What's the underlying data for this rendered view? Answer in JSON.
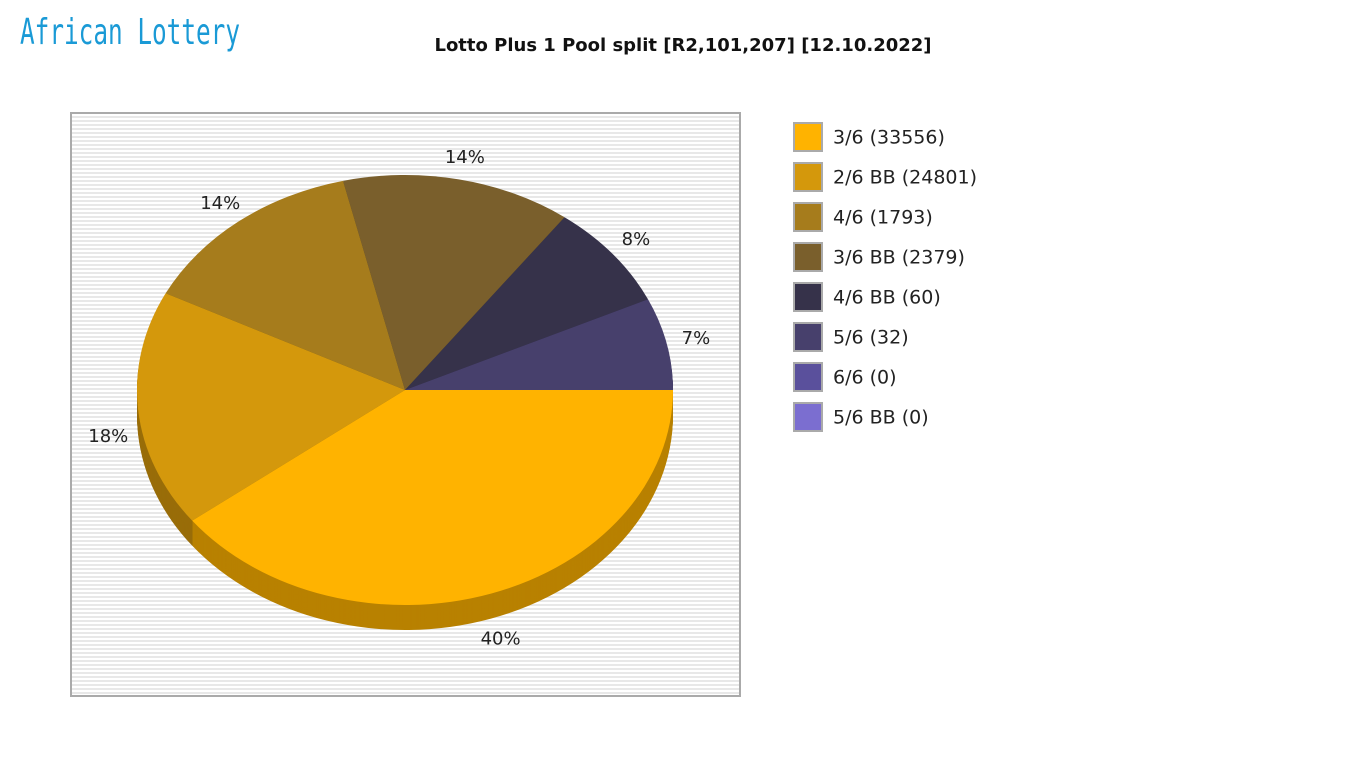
{
  "logo": "African Lottery",
  "chart_data": {
    "type": "pie",
    "title": "Lotto Plus 1 Pool split [R2,101,207] [12.10.2022]",
    "categories": [
      "3/6 (33556)",
      "2/6 BB (24801)",
      "4/6 (1793)",
      "3/6 BB (2379)",
      "4/6 BB (60)",
      "5/6 (32)",
      "6/6 (0)",
      "5/6 BB (0)"
    ],
    "values": [
      40,
      18,
      14,
      14,
      8,
      7,
      0,
      0
    ],
    "value_labels": [
      "40%",
      "18%",
      "14%",
      "14%",
      "8%",
      "7%",
      null,
      null
    ],
    "colors": [
      "#ffb300",
      "#d4980c",
      "#a67c1c",
      "#7a5f2c",
      "#36324a",
      "#47406c",
      "#5a509c",
      "#7b6ed0"
    ],
    "legend": "right"
  }
}
